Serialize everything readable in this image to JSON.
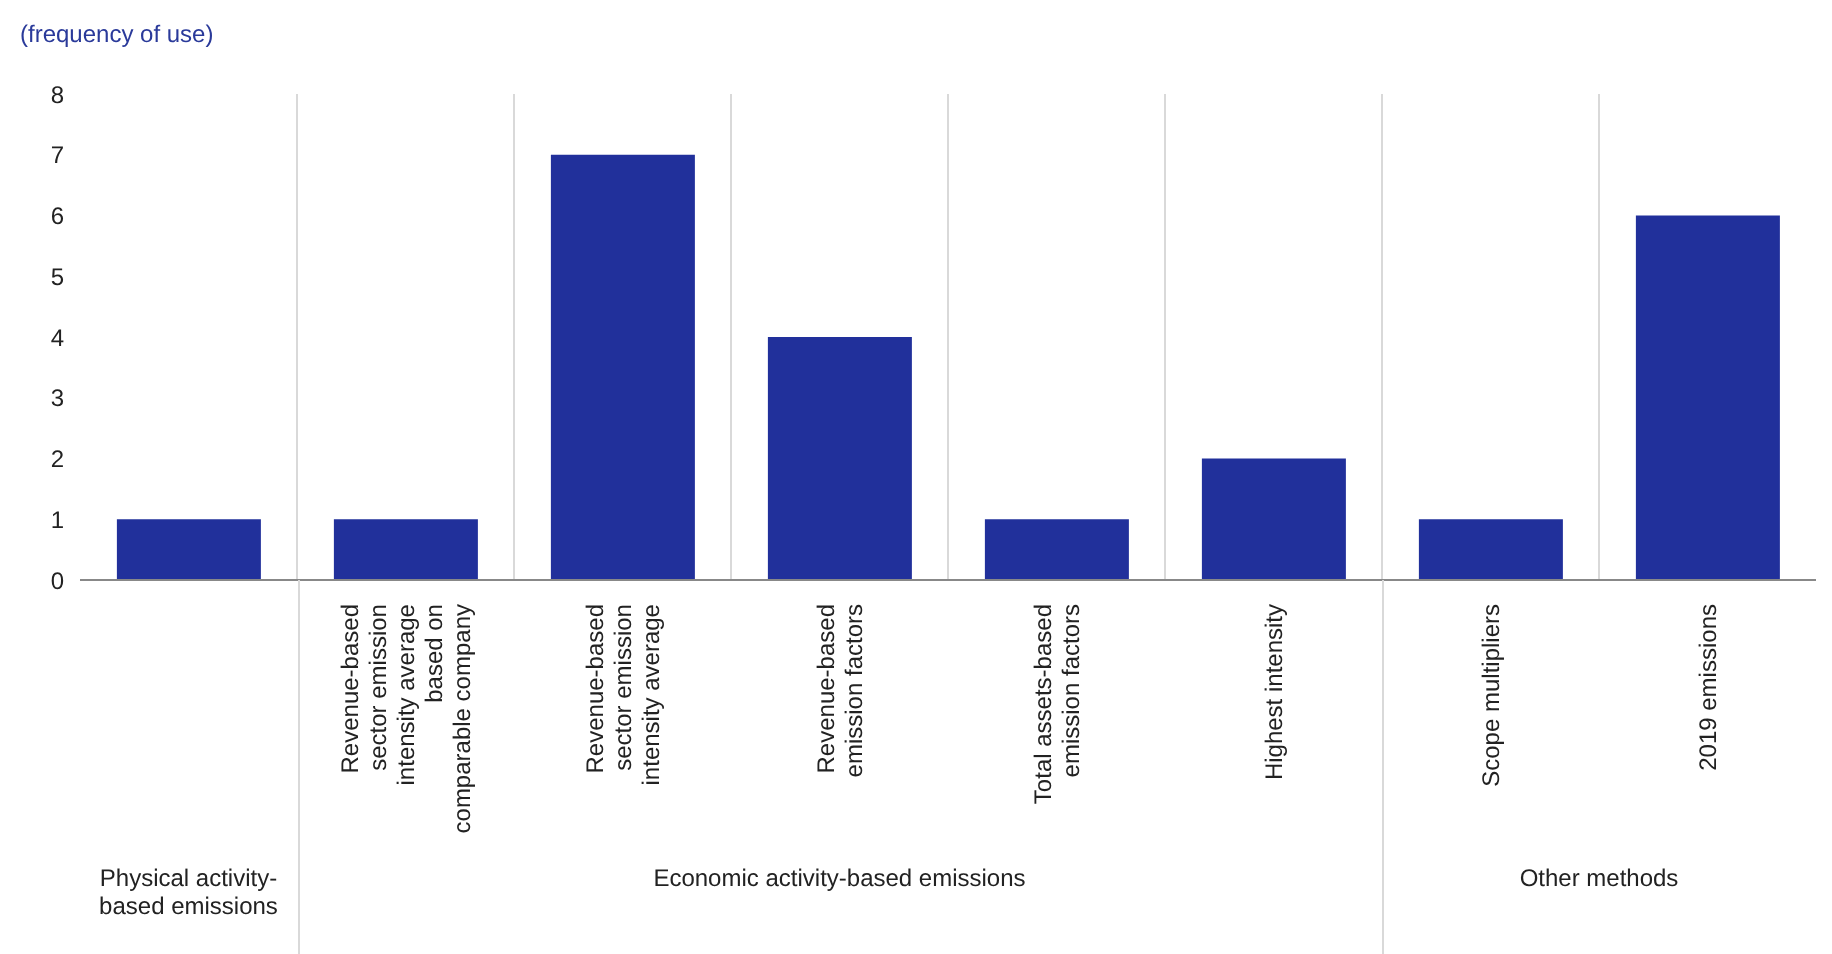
{
  "chart_data": {
    "type": "bar",
    "ylabel": "(frequency of use)",
    "categories": [
      null,
      "Revenue-based sector emission intensity average based on comparable company",
      "Revenue-based sector emission intensity average",
      "Revenue-based emission factors",
      "Total assets-based emission factors",
      "Highest intensity",
      "Scope multipliers",
      "2019 emissions"
    ],
    "values": [
      1,
      1,
      7,
      4,
      1,
      2,
      1,
      6
    ],
    "color": "#21309b",
    "ylim": [
      0,
      8
    ],
    "yticks": [
      0,
      1,
      2,
      3,
      4,
      5,
      6,
      7,
      8
    ],
    "grid": "x",
    "annotations": [
      "Physical activity-based emissions",
      "Economic activity-based emissions",
      "Other methods"
    ]
  }
}
